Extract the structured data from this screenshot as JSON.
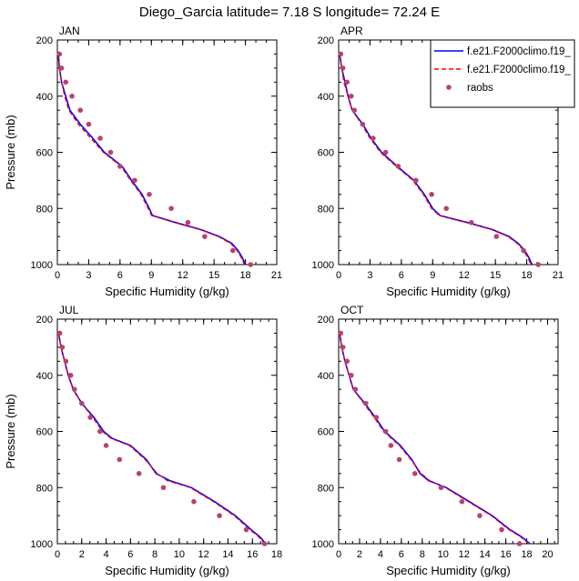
{
  "figure": {
    "title": "Diego_Garcia  latitude= 7.18 S longitude= 72.24 E"
  },
  "legend": {
    "position": "top-right",
    "entries": [
      {
        "label": "f.e21.F2000climo.f19_",
        "color": "#0000ff",
        "style": "solid"
      },
      {
        "label": "f.e21.F2000climo.f19_",
        "color": "#ff0000",
        "style": "dashed"
      },
      {
        "label": "raobs",
        "color": "#b5446e",
        "style": "marker"
      }
    ]
  },
  "chart_data": [
    {
      "type": "line",
      "panel_label": "JAN",
      "xlabel": "Specific Humidity (g/kg)",
      "ylabel": "Pressure (mb)",
      "xlim": [
        0,
        21
      ],
      "ylim": [
        1000,
        200
      ],
      "y_reversed": true,
      "xticks": [
        0,
        3,
        6,
        9,
        12,
        15,
        18,
        21
      ],
      "yticks": [
        200,
        400,
        600,
        800,
        1000
      ],
      "series": [
        {
          "name": "f.e21.F2000climo.f19_",
          "color": "#0000ff",
          "points": [
            [
              0.1,
              250
            ],
            [
              0.2,
              300
            ],
            [
              0.4,
              350
            ],
            [
              0.8,
              400
            ],
            [
              1.2,
              450
            ],
            [
              2.2,
              500
            ],
            [
              3.4,
              550
            ],
            [
              4.5,
              600
            ],
            [
              6.2,
              650
            ],
            [
              7.1,
              700
            ],
            [
              8.1,
              750
            ],
            [
              8.8,
              800
            ],
            [
              9.1,
              825
            ],
            [
              11.3,
              850
            ],
            [
              13.7,
              875
            ],
            [
              15.5,
              900
            ],
            [
              16.7,
              925
            ],
            [
              17.3,
              950
            ],
            [
              17.7,
              975
            ],
            [
              18.0,
              1000
            ]
          ]
        },
        {
          "name": "f.e21.F2000climo.f19_",
          "color": "#ff0000",
          "points": [
            [
              0.1,
              250
            ],
            [
              0.2,
              300
            ],
            [
              0.4,
              350
            ],
            [
              0.7,
              400
            ],
            [
              1.1,
              450
            ],
            [
              2.0,
              500
            ],
            [
              3.2,
              550
            ],
            [
              4.4,
              600
            ],
            [
              6.1,
              650
            ],
            [
              7.0,
              700
            ],
            [
              8.0,
              750
            ],
            [
              8.7,
              800
            ],
            [
              9.0,
              825
            ],
            [
              11.2,
              850
            ],
            [
              13.6,
              875
            ],
            [
              15.4,
              900
            ],
            [
              16.6,
              925
            ],
            [
              17.2,
              950
            ],
            [
              17.6,
              975
            ],
            [
              17.9,
              1000
            ]
          ]
        },
        {
          "name": "raobs",
          "color": "#b5446e",
          "marker": true,
          "points": [
            [
              0.2,
              250
            ],
            [
              0.4,
              300
            ],
            [
              0.8,
              350
            ],
            [
              1.4,
              400
            ],
            [
              2.2,
              450
            ],
            [
              3.0,
              500
            ],
            [
              4.1,
              550
            ],
            [
              5.1,
              600
            ],
            [
              6.0,
              650
            ],
            [
              7.4,
              700
            ],
            [
              8.8,
              750
            ],
            [
              10.9,
              800
            ],
            [
              12.5,
              850
            ],
            [
              14.1,
              900
            ],
            [
              16.8,
              950
            ],
            [
              18.5,
              1000
            ]
          ]
        }
      ]
    },
    {
      "type": "line",
      "panel_label": "APR",
      "xlabel": "Specific Humidity (g/kg)",
      "ylabel": "",
      "xlim": [
        0,
        21
      ],
      "ylim": [
        1000,
        200
      ],
      "y_reversed": true,
      "xticks": [
        0,
        3,
        6,
        9,
        12,
        15,
        18,
        21
      ],
      "yticks": [
        200,
        400,
        600,
        800,
        1000
      ],
      "series": [
        {
          "name": "f.e21.F2000climo.f19_",
          "color": "#0000ff",
          "points": [
            [
              0.1,
              250
            ],
            [
              0.3,
              300
            ],
            [
              0.6,
              350
            ],
            [
              0.9,
              400
            ],
            [
              1.3,
              450
            ],
            [
              2.3,
              500
            ],
            [
              3.1,
              550
            ],
            [
              4.1,
              600
            ],
            [
              5.6,
              650
            ],
            [
              7.2,
              700
            ],
            [
              8.2,
              750
            ],
            [
              9.0,
              800
            ],
            [
              9.7,
              825
            ],
            [
              12.3,
              850
            ],
            [
              14.7,
              875
            ],
            [
              16.3,
              900
            ],
            [
              17.2,
              925
            ],
            [
              17.8,
              950
            ],
            [
              18.2,
              975
            ],
            [
              18.5,
              1000
            ]
          ]
        },
        {
          "name": "f.e21.F2000climo.f19_",
          "color": "#ff0000",
          "points": [
            [
              0.1,
              250
            ],
            [
              0.3,
              300
            ],
            [
              0.5,
              350
            ],
            [
              0.9,
              400
            ],
            [
              1.3,
              450
            ],
            [
              2.2,
              500
            ],
            [
              3.0,
              550
            ],
            [
              4.0,
              600
            ],
            [
              5.5,
              650
            ],
            [
              7.1,
              700
            ],
            [
              8.1,
              750
            ],
            [
              8.9,
              800
            ],
            [
              9.6,
              825
            ],
            [
              12.2,
              850
            ],
            [
              14.6,
              875
            ],
            [
              16.2,
              900
            ],
            [
              17.1,
              925
            ],
            [
              17.7,
              950
            ],
            [
              18.1,
              975
            ],
            [
              18.4,
              1000
            ]
          ]
        },
        {
          "name": "raobs",
          "color": "#b5446e",
          "marker": true,
          "points": [
            [
              0.2,
              250
            ],
            [
              0.4,
              300
            ],
            [
              0.8,
              350
            ],
            [
              1.2,
              400
            ],
            [
              1.5,
              450
            ],
            [
              2.3,
              500
            ],
            [
              3.3,
              550
            ],
            [
              4.5,
              600
            ],
            [
              5.7,
              650
            ],
            [
              7.4,
              700
            ],
            [
              8.9,
              750
            ],
            [
              10.3,
              800
            ],
            [
              12.7,
              850
            ],
            [
              15.1,
              900
            ],
            [
              17.7,
              950
            ],
            [
              19.1,
              1000
            ]
          ]
        }
      ]
    },
    {
      "type": "line",
      "panel_label": "JUL",
      "xlabel": "Specific Humidity (g/kg)",
      "ylabel": "Pressure (mb)",
      "xlim": [
        0,
        18
      ],
      "ylim": [
        1000,
        200
      ],
      "y_reversed": true,
      "xticks": [
        0,
        2,
        4,
        6,
        8,
        10,
        12,
        14,
        16,
        18
      ],
      "yticks": [
        200,
        400,
        600,
        800,
        1000
      ],
      "series": [
        {
          "name": "f.e21.F2000climo.f19_",
          "color": "#0000ff",
          "points": [
            [
              0.1,
              250
            ],
            [
              0.3,
              300
            ],
            [
              0.6,
              350
            ],
            [
              0.9,
              400
            ],
            [
              1.3,
              450
            ],
            [
              2.0,
              500
            ],
            [
              3.0,
              550
            ],
            [
              3.8,
              600
            ],
            [
              4.5,
              625
            ],
            [
              6.0,
              650
            ],
            [
              7.3,
              700
            ],
            [
              8.1,
              750
            ],
            [
              9.2,
              775
            ],
            [
              11.0,
              800
            ],
            [
              12.9,
              850
            ],
            [
              14.6,
              900
            ],
            [
              15.9,
              950
            ],
            [
              16.6,
              975
            ],
            [
              17.1,
              1000
            ]
          ]
        },
        {
          "name": "f.e21.F2000climo.f19_",
          "color": "#ff0000",
          "points": [
            [
              0.1,
              250
            ],
            [
              0.3,
              300
            ],
            [
              0.6,
              350
            ],
            [
              0.9,
              400
            ],
            [
              1.3,
              450
            ],
            [
              2.0,
              500
            ],
            [
              2.9,
              550
            ],
            [
              3.7,
              600
            ],
            [
              4.4,
              625
            ],
            [
              5.9,
              650
            ],
            [
              7.2,
              700
            ],
            [
              8.2,
              750
            ],
            [
              9.0,
              775
            ],
            [
              10.9,
              800
            ],
            [
              12.8,
              850
            ],
            [
              14.5,
              900
            ],
            [
              15.8,
              950
            ],
            [
              16.5,
              975
            ],
            [
              17.0,
              1000
            ]
          ]
        },
        {
          "name": "raobs",
          "color": "#b5446e",
          "marker": true,
          "points": [
            [
              0.2,
              250
            ],
            [
              0.4,
              300
            ],
            [
              0.7,
              350
            ],
            [
              1.1,
              400
            ],
            [
              1.4,
              450
            ],
            [
              2.0,
              500
            ],
            [
              2.7,
              550
            ],
            [
              3.5,
              600
            ],
            [
              4.0,
              650
            ],
            [
              5.1,
              700
            ],
            [
              6.7,
              750
            ],
            [
              8.7,
              800
            ],
            [
              11.2,
              850
            ],
            [
              13.3,
              900
            ],
            [
              15.5,
              950
            ],
            [
              17.0,
              1000
            ]
          ]
        }
      ]
    },
    {
      "type": "line",
      "panel_label": "OCT",
      "xlabel": "Specific Humidity (g/kg)",
      "ylabel": "",
      "xlim": [
        0,
        21
      ],
      "ylim": [
        1000,
        200
      ],
      "y_reversed": true,
      "xticks": [
        0,
        2,
        4,
        6,
        8,
        10,
        12,
        14,
        16,
        18,
        20
      ],
      "yticks": [
        200,
        400,
        600,
        800,
        1000
      ],
      "series": [
        {
          "name": "f.e21.F2000climo.f19_",
          "color": "#0000ff",
          "points": [
            [
              0.1,
              250
            ],
            [
              0.3,
              300
            ],
            [
              0.6,
              350
            ],
            [
              1.0,
              400
            ],
            [
              1.4,
              450
            ],
            [
              2.5,
              500
            ],
            [
              3.5,
              550
            ],
            [
              4.4,
              600
            ],
            [
              5.9,
              650
            ],
            [
              7.0,
              700
            ],
            [
              7.8,
              750
            ],
            [
              8.6,
              775
            ],
            [
              10.3,
              800
            ],
            [
              12.5,
              850
            ],
            [
              14.7,
              900
            ],
            [
              16.4,
              950
            ],
            [
              17.5,
              975
            ],
            [
              18.3,
              1000
            ]
          ]
        },
        {
          "name": "f.e21.F2000climo.f19_",
          "color": "#ff0000",
          "points": [
            [
              0.1,
              250
            ],
            [
              0.3,
              300
            ],
            [
              0.6,
              350
            ],
            [
              1.0,
              400
            ],
            [
              1.4,
              450
            ],
            [
              2.4,
              500
            ],
            [
              3.4,
              550
            ],
            [
              4.3,
              600
            ],
            [
              5.8,
              650
            ],
            [
              6.9,
              700
            ],
            [
              7.9,
              750
            ],
            [
              8.7,
              775
            ],
            [
              10.2,
              800
            ],
            [
              12.4,
              850
            ],
            [
              14.6,
              900
            ],
            [
              16.3,
              950
            ],
            [
              17.4,
              975
            ],
            [
              18.2,
              1000
            ]
          ]
        },
        {
          "name": "raobs",
          "color": "#b5446e",
          "marker": true,
          "points": [
            [
              0.2,
              250
            ],
            [
              0.4,
              300
            ],
            [
              0.8,
              350
            ],
            [
              1.2,
              400
            ],
            [
              1.6,
              450
            ],
            [
              2.6,
              500
            ],
            [
              3.6,
              550
            ],
            [
              4.5,
              600
            ],
            [
              5.0,
              650
            ],
            [
              5.8,
              700
            ],
            [
              7.3,
              750
            ],
            [
              9.8,
              800
            ],
            [
              11.8,
              850
            ],
            [
              13.5,
              900
            ],
            [
              15.6,
              950
            ],
            [
              17.3,
              1000
            ]
          ]
        }
      ]
    }
  ]
}
